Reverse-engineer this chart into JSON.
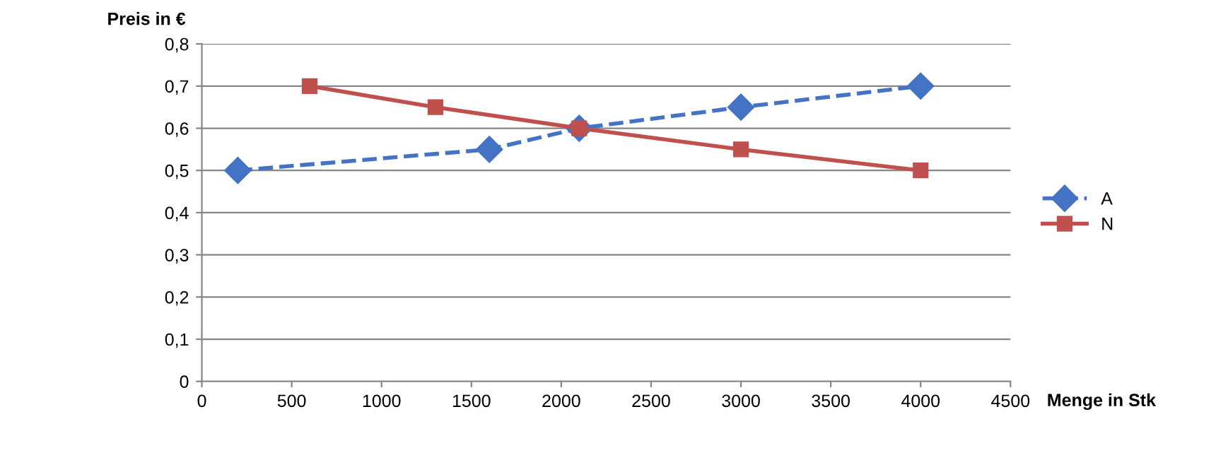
{
  "chart_data": {
    "type": "line",
    "xlabel": "Menge in Stk",
    "ylabel": "Preis in €",
    "xlim": [
      0,
      4500
    ],
    "xticks": [
      0,
      500,
      1000,
      1500,
      2000,
      2500,
      3000,
      3500,
      4000,
      4500
    ],
    "ylim": [
      0,
      0.8
    ],
    "yticks": [
      0,
      {
        "value": 0.1,
        "label": "0,1"
      },
      {
        "value": 0.2,
        "label": "0,2"
      },
      {
        "value": 0.3,
        "label": "0,3"
      },
      {
        "value": 0.4,
        "label": "0,4"
      },
      {
        "value": 0.5,
        "label": "0,5"
      },
      {
        "value": 0.6,
        "label": "0,6"
      },
      {
        "value": 0.7,
        "label": "0,7"
      },
      {
        "value": 0.8,
        "label": "0,8"
      }
    ],
    "grid": "y",
    "legend": "right",
    "series": [
      {
        "name": "A",
        "color": "#4472c4",
        "marker": "diamond",
        "line_style": "dashed",
        "x": [
          200,
          1600,
          2100,
          3000,
          4000
        ],
        "values": [
          0.5,
          0.55,
          0.6,
          0.65,
          0.7
        ]
      },
      {
        "name": "N",
        "color": "#c0504d",
        "marker": "square",
        "line_style": "solid",
        "x": [
          600,
          1300,
          2100,
          3000,
          4000
        ],
        "values": [
          0.7,
          0.65,
          0.6,
          0.55,
          0.5
        ]
      }
    ]
  }
}
